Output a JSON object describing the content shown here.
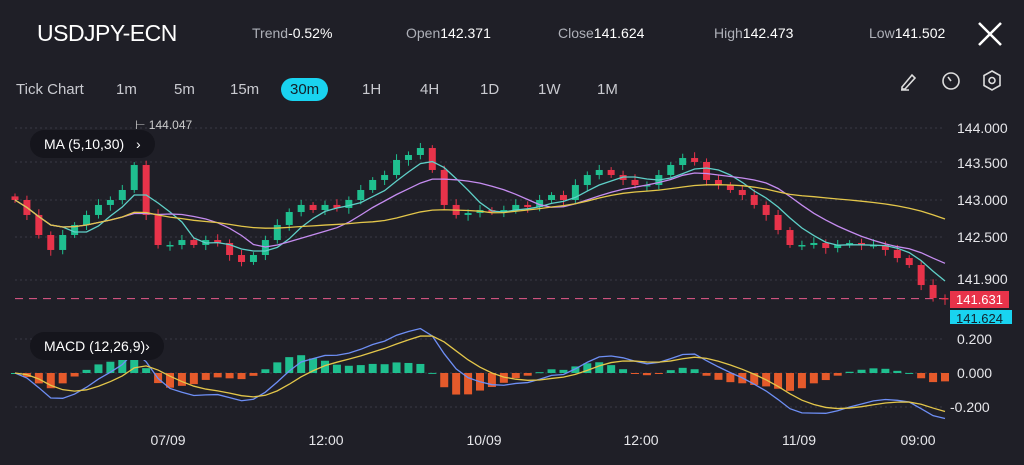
{
  "header": {
    "symbol": "USDJPY-ECN",
    "stats": [
      {
        "label": "Trend",
        "value": "-0.52%"
      },
      {
        "label": "Open",
        "value": "142.371"
      },
      {
        "label": "Close",
        "value": "141.624"
      },
      {
        "label": "High",
        "value": "142.473"
      },
      {
        "label": "Low",
        "value": "141.502"
      }
    ],
    "close_icon": "close-icon"
  },
  "timeframes": [
    "Tick Chart",
    "1m",
    "5m",
    "15m",
    "30m",
    "1H",
    "4H",
    "1D",
    "1W",
    "1M"
  ],
  "active_timeframe": "30m",
  "tools": [
    "pencil-icon",
    "timer-icon",
    "settings-hex-icon"
  ],
  "indicators": {
    "ma_label": "MA (5,10,30)",
    "macd_label": "MACD (12,26,9)"
  },
  "colors": {
    "up": "#1fbf8f",
    "down": "#e8334a",
    "ma5": "#5fd0c8",
    "ma10": "#c58cf0",
    "ma30": "#e3c64a",
    "macd": "#6e8ff5",
    "signal": "#e3c64a",
    "hist_up": "#1fbf8f",
    "hist_down": "#e55a2b",
    "accent": "#19d3f0"
  },
  "chart_data": {
    "type": "candlestick",
    "price_axis": {
      "ticks": [
        "144.000",
        "143.500",
        "143.000",
        "142.500",
        "141.900"
      ],
      "range": [
        141.55,
        144.1
      ]
    },
    "macd_axis": {
      "ticks": [
        "0.200",
        "0.000",
        "-0.200"
      ],
      "range": [
        -0.26,
        0.26
      ]
    },
    "x_ticks": [
      "07/09",
      "12:00",
      "10/09",
      "12:00",
      "11/09",
      "09:00"
    ],
    "max_marker": "144.047",
    "last_price": "141.631",
    "close_price": "141.624",
    "closes": [
      143.0,
      142.792,
      142.514,
      142.306,
      142.514,
      142.653,
      142.792,
      142.931,
      143.0,
      143.139,
      143.486,
      142.792,
      142.375,
      142.375,
      142.444,
      142.375,
      142.444,
      142.403,
      142.236,
      142.139,
      142.236,
      142.444,
      142.653,
      142.833,
      142.931,
      142.861,
      142.931,
      142.889,
      143.0,
      143.139,
      143.278,
      143.347,
      143.556,
      143.625,
      143.722,
      143.417,
      142.931,
      142.792,
      142.819,
      142.861,
      142.833,
      142.861,
      142.931,
      142.903,
      143.0,
      143.069,
      143.0,
      143.208,
      143.347,
      143.417,
      143.347,
      143.278,
      143.208,
      143.208,
      143.347,
      143.486,
      143.583,
      143.528,
      143.278,
      143.208,
      143.139,
      143.069,
      142.931,
      142.792,
      142.583,
      142.375,
      142.375,
      142.403,
      142.333,
      142.375,
      142.403,
      142.375,
      142.375,
      142.306,
      142.194,
      142.097,
      141.819,
      141.639,
      141.624
    ]
  }
}
